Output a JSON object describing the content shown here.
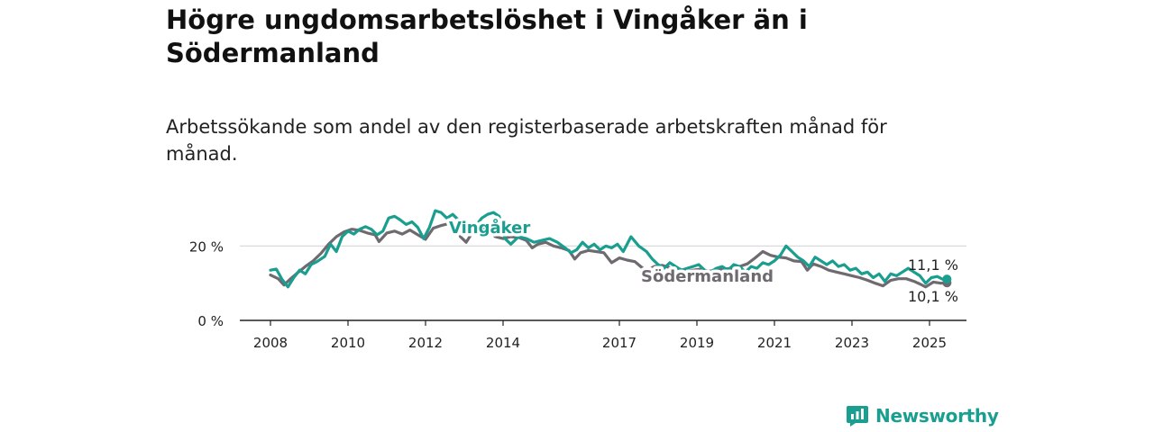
{
  "title": "Högre ungdomsarbetslöshet i Vingåker än i Södermanland",
  "subtitle": "Arbetssökande som andel av den registerbaserade arbetskraften månad för månad.",
  "brand": {
    "name": "Newsworthy",
    "color": "#1a9e8f",
    "icon": "newsworthy-chart-bubble-icon"
  },
  "chart_data": {
    "type": "line",
    "ylim": [
      0,
      30
    ],
    "xlim": [
      2007.5,
      2026
    ],
    "y_ticks": [
      {
        "value": 0,
        "label": "0 %"
      },
      {
        "value": 20,
        "label": "20 %"
      }
    ],
    "x_ticks": [
      {
        "value": 2008,
        "label": "2008"
      },
      {
        "value": 2010,
        "label": "2010"
      },
      {
        "value": 2012,
        "label": "2012"
      },
      {
        "value": 2014,
        "label": "2014"
      },
      {
        "value": 2017,
        "label": "2017"
      },
      {
        "value": 2019,
        "label": "2019"
      },
      {
        "value": 2021,
        "label": "2021"
      },
      {
        "value": 2023,
        "label": "2023"
      },
      {
        "value": 2025,
        "label": "2025"
      }
    ],
    "grid": "horizontal",
    "series": [
      {
        "name": "Södermanland",
        "color": "#6e6a70",
        "end_label": "10,1 %",
        "points": [
          [
            2008.0,
            12.2
          ],
          [
            2008.2,
            11.2
          ],
          [
            2008.35,
            9.5
          ],
          [
            2008.5,
            11.0
          ],
          [
            2008.7,
            12.8
          ],
          [
            2008.9,
            14.5
          ],
          [
            2009.1,
            16.0
          ],
          [
            2009.3,
            18.0
          ],
          [
            2009.5,
            20.5
          ],
          [
            2009.7,
            22.5
          ],
          [
            2009.9,
            23.8
          ],
          [
            2010.1,
            24.5
          ],
          [
            2010.3,
            24.2
          ],
          [
            2010.5,
            23.5
          ],
          [
            2010.7,
            23.0
          ],
          [
            2010.8,
            21.2
          ],
          [
            2011.0,
            23.5
          ],
          [
            2011.2,
            24.0
          ],
          [
            2011.4,
            23.2
          ],
          [
            2011.6,
            24.3
          ],
          [
            2011.8,
            23.0
          ],
          [
            2012.0,
            21.8
          ],
          [
            2012.2,
            24.8
          ],
          [
            2012.4,
            25.5
          ],
          [
            2012.6,
            26.0
          ],
          [
            2012.8,
            25.0
          ],
          [
            2012.9,
            22.5
          ],
          [
            2013.05,
            21.0
          ],
          [
            2013.2,
            23.5
          ],
          [
            2013.4,
            25.5
          ],
          [
            2013.6,
            24.5
          ],
          [
            2013.8,
            22.5
          ],
          [
            2014.0,
            22.0
          ],
          [
            2014.2,
            22.5
          ],
          [
            2014.4,
            22.3
          ],
          [
            2014.6,
            21.5
          ],
          [
            2014.75,
            19.5
          ],
          [
            2014.9,
            20.5
          ],
          [
            2015.1,
            21.0
          ],
          [
            2015.3,
            20.0
          ],
          [
            2015.5,
            19.5
          ],
          [
            2015.7,
            18.8
          ],
          [
            2015.85,
            16.5
          ],
          [
            2016.0,
            18.2
          ],
          [
            2016.2,
            18.8
          ],
          [
            2016.4,
            18.5
          ],
          [
            2016.6,
            18.2
          ],
          [
            2016.8,
            15.5
          ],
          [
            2017.0,
            16.8
          ],
          [
            2017.2,
            16.2
          ],
          [
            2017.4,
            15.8
          ],
          [
            2017.55,
            14.5
          ],
          [
            2017.7,
            13.2
          ],
          [
            2017.9,
            14.5
          ],
          [
            2018.1,
            14.8
          ],
          [
            2018.3,
            14.2
          ],
          [
            2018.5,
            14.0
          ],
          [
            2018.7,
            13.2
          ],
          [
            2018.9,
            13.5
          ],
          [
            2019.1,
            13.8
          ],
          [
            2019.3,
            13.2
          ],
          [
            2019.5,
            13.5
          ],
          [
            2019.7,
            13.8
          ],
          [
            2019.9,
            14.0
          ],
          [
            2020.1,
            14.5
          ],
          [
            2020.3,
            15.2
          ],
          [
            2020.5,
            16.8
          ],
          [
            2020.7,
            18.5
          ],
          [
            2020.9,
            17.5
          ],
          [
            2021.1,
            17.0
          ],
          [
            2021.3,
            16.8
          ],
          [
            2021.5,
            16.0
          ],
          [
            2021.7,
            15.8
          ],
          [
            2021.85,
            13.5
          ],
          [
            2022.0,
            15.2
          ],
          [
            2022.2,
            14.5
          ],
          [
            2022.4,
            13.5
          ],
          [
            2022.6,
            13.0
          ],
          [
            2022.8,
            12.5
          ],
          [
            2023.0,
            12.0
          ],
          [
            2023.2,
            11.5
          ],
          [
            2023.4,
            10.8
          ],
          [
            2023.6,
            10.0
          ],
          [
            2023.8,
            9.3
          ],
          [
            2024.0,
            10.8
          ],
          [
            2024.2,
            11.2
          ],
          [
            2024.4,
            11.2
          ],
          [
            2024.6,
            10.5
          ],
          [
            2024.75,
            9.8
          ],
          [
            2024.9,
            9.0
          ],
          [
            2025.1,
            10.3
          ],
          [
            2025.3,
            10.0
          ],
          [
            2025.45,
            10.1
          ]
        ]
      },
      {
        "name": "Vingåker",
        "color": "#1a9e8f",
        "end_label": "11,1 %",
        "points": [
          [
            2008.0,
            13.5
          ],
          [
            2008.15,
            13.8
          ],
          [
            2008.3,
            11.0
          ],
          [
            2008.45,
            9.0
          ],
          [
            2008.6,
            11.5
          ],
          [
            2008.75,
            13.5
          ],
          [
            2008.9,
            12.5
          ],
          [
            2009.05,
            15.0
          ],
          [
            2009.2,
            15.8
          ],
          [
            2009.4,
            17.2
          ],
          [
            2009.55,
            20.5
          ],
          [
            2009.7,
            18.5
          ],
          [
            2009.85,
            22.5
          ],
          [
            2010.0,
            24.0
          ],
          [
            2010.15,
            23.2
          ],
          [
            2010.3,
            24.5
          ],
          [
            2010.45,
            25.2
          ],
          [
            2010.6,
            24.5
          ],
          [
            2010.75,
            23.0
          ],
          [
            2010.9,
            24.0
          ],
          [
            2011.05,
            27.5
          ],
          [
            2011.2,
            28.0
          ],
          [
            2011.35,
            27.0
          ],
          [
            2011.5,
            25.8
          ],
          [
            2011.65,
            26.5
          ],
          [
            2011.8,
            25.0
          ],
          [
            2011.95,
            22.0
          ],
          [
            2012.1,
            25.0
          ],
          [
            2012.25,
            29.5
          ],
          [
            2012.4,
            29.0
          ],
          [
            2012.55,
            27.5
          ],
          [
            2012.7,
            28.5
          ],
          [
            2012.85,
            27.0
          ],
          [
            2013.0,
            25.0
          ],
          [
            2013.15,
            24.5
          ],
          [
            2013.3,
            25.5
          ],
          [
            2013.45,
            27.5
          ],
          [
            2013.6,
            28.5
          ],
          [
            2013.75,
            29.0
          ],
          [
            2013.9,
            28.0
          ],
          [
            2014.05,
            22.0
          ],
          [
            2014.2,
            20.5
          ],
          [
            2014.4,
            22.5
          ],
          [
            2014.6,
            22.0
          ],
          [
            2014.8,
            21.0
          ],
          [
            2015.0,
            21.5
          ],
          [
            2015.2,
            22.0
          ],
          [
            2015.4,
            21.0
          ],
          [
            2015.6,
            19.5
          ],
          [
            2015.75,
            18.2
          ],
          [
            2015.9,
            19.0
          ],
          [
            2016.05,
            21.0
          ],
          [
            2016.2,
            19.5
          ],
          [
            2016.35,
            20.5
          ],
          [
            2016.5,
            19.0
          ],
          [
            2016.65,
            20.0
          ],
          [
            2016.8,
            19.5
          ],
          [
            2016.95,
            20.5
          ],
          [
            2017.1,
            18.5
          ],
          [
            2017.3,
            22.5
          ],
          [
            2017.5,
            20.0
          ],
          [
            2017.7,
            18.5
          ],
          [
            2017.85,
            16.5
          ],
          [
            2018.0,
            15.0
          ],
          [
            2018.15,
            14.0
          ],
          [
            2018.3,
            15.5
          ],
          [
            2018.45,
            14.5
          ],
          [
            2018.6,
            13.5
          ],
          [
            2018.75,
            14.0
          ],
          [
            2018.9,
            14.5
          ],
          [
            2019.05,
            15.0
          ],
          [
            2019.2,
            13.5
          ],
          [
            2019.35,
            13.0
          ],
          [
            2019.5,
            14.0
          ],
          [
            2019.65,
            14.5
          ],
          [
            2019.8,
            13.5
          ],
          [
            2019.95,
            15.0
          ],
          [
            2020.1,
            14.5
          ],
          [
            2020.25,
            13.0
          ],
          [
            2020.4,
            14.5
          ],
          [
            2020.55,
            14.0
          ],
          [
            2020.7,
            15.5
          ],
          [
            2020.85,
            15.0
          ],
          [
            2021.0,
            16.0
          ],
          [
            2021.15,
            17.5
          ],
          [
            2021.3,
            20.0
          ],
          [
            2021.45,
            18.5
          ],
          [
            2021.6,
            17.0
          ],
          [
            2021.75,
            16.0
          ],
          [
            2021.9,
            14.5
          ],
          [
            2022.05,
            17.0
          ],
          [
            2022.2,
            16.0
          ],
          [
            2022.35,
            15.0
          ],
          [
            2022.5,
            16.0
          ],
          [
            2022.65,
            14.5
          ],
          [
            2022.8,
            15.0
          ],
          [
            2022.95,
            13.5
          ],
          [
            2023.1,
            14.0
          ],
          [
            2023.25,
            12.5
          ],
          [
            2023.4,
            13.0
          ],
          [
            2023.55,
            11.5
          ],
          [
            2023.7,
            12.5
          ],
          [
            2023.85,
            10.5
          ],
          [
            2024.0,
            12.5
          ],
          [
            2024.15,
            12.0
          ],
          [
            2024.3,
            13.0
          ],
          [
            2024.45,
            14.0
          ],
          [
            2024.6,
            13.0
          ],
          [
            2024.75,
            12.0
          ],
          [
            2024.9,
            10.0
          ],
          [
            2025.05,
            11.5
          ],
          [
            2025.2,
            11.8
          ],
          [
            2025.35,
            11.0
          ],
          [
            2025.45,
            11.1
          ]
        ]
      }
    ],
    "series_labels": [
      {
        "series": "Vingåker",
        "text": "Vingåker"
      },
      {
        "series": "Södermanland",
        "text": "Södermanland"
      }
    ]
  }
}
